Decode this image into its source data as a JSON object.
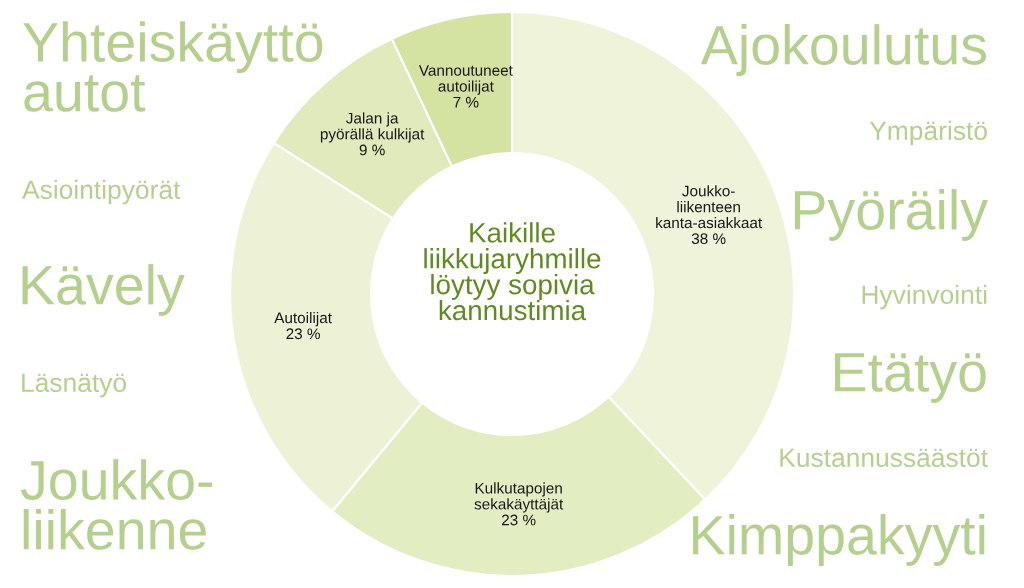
{
  "chart_data": {
    "type": "donut",
    "title": "Kaikille\nliikkujaryhmille\nlöytyy sopivia\nkannustimia",
    "categories": [
      "Joukko-\nliikenteen\nkanta-asiakkaat",
      "Kulkutapojen\nsekakäyttäjät",
      "Autoilijat",
      "Jalan ja\npyörällä kulkijat",
      "Vannoutuneet\nautoilijat"
    ],
    "values": [
      38,
      23,
      23,
      9,
      7
    ],
    "value_labels": [
      "38 %",
      "23 %",
      "23 %",
      "9 %",
      "7 %"
    ],
    "colors": [
      "#eef3da",
      "#e3edc2",
      "#edf2d7",
      "#e0eabd",
      "#d4e3a2"
    ],
    "annotations": [
      "Yhteiskäyttö\nautot",
      "Asiointipyörät",
      "Kävely",
      "Läsnätyö",
      "Joukko-\nliikenne",
      "Ajokoulutus",
      "Ympäristö",
      "Pyöräily",
      "Hyvinvointi",
      "Etätyö",
      "Kustannussäästöt",
      "Kimppakyyti"
    ],
    "legend": false
  }
}
